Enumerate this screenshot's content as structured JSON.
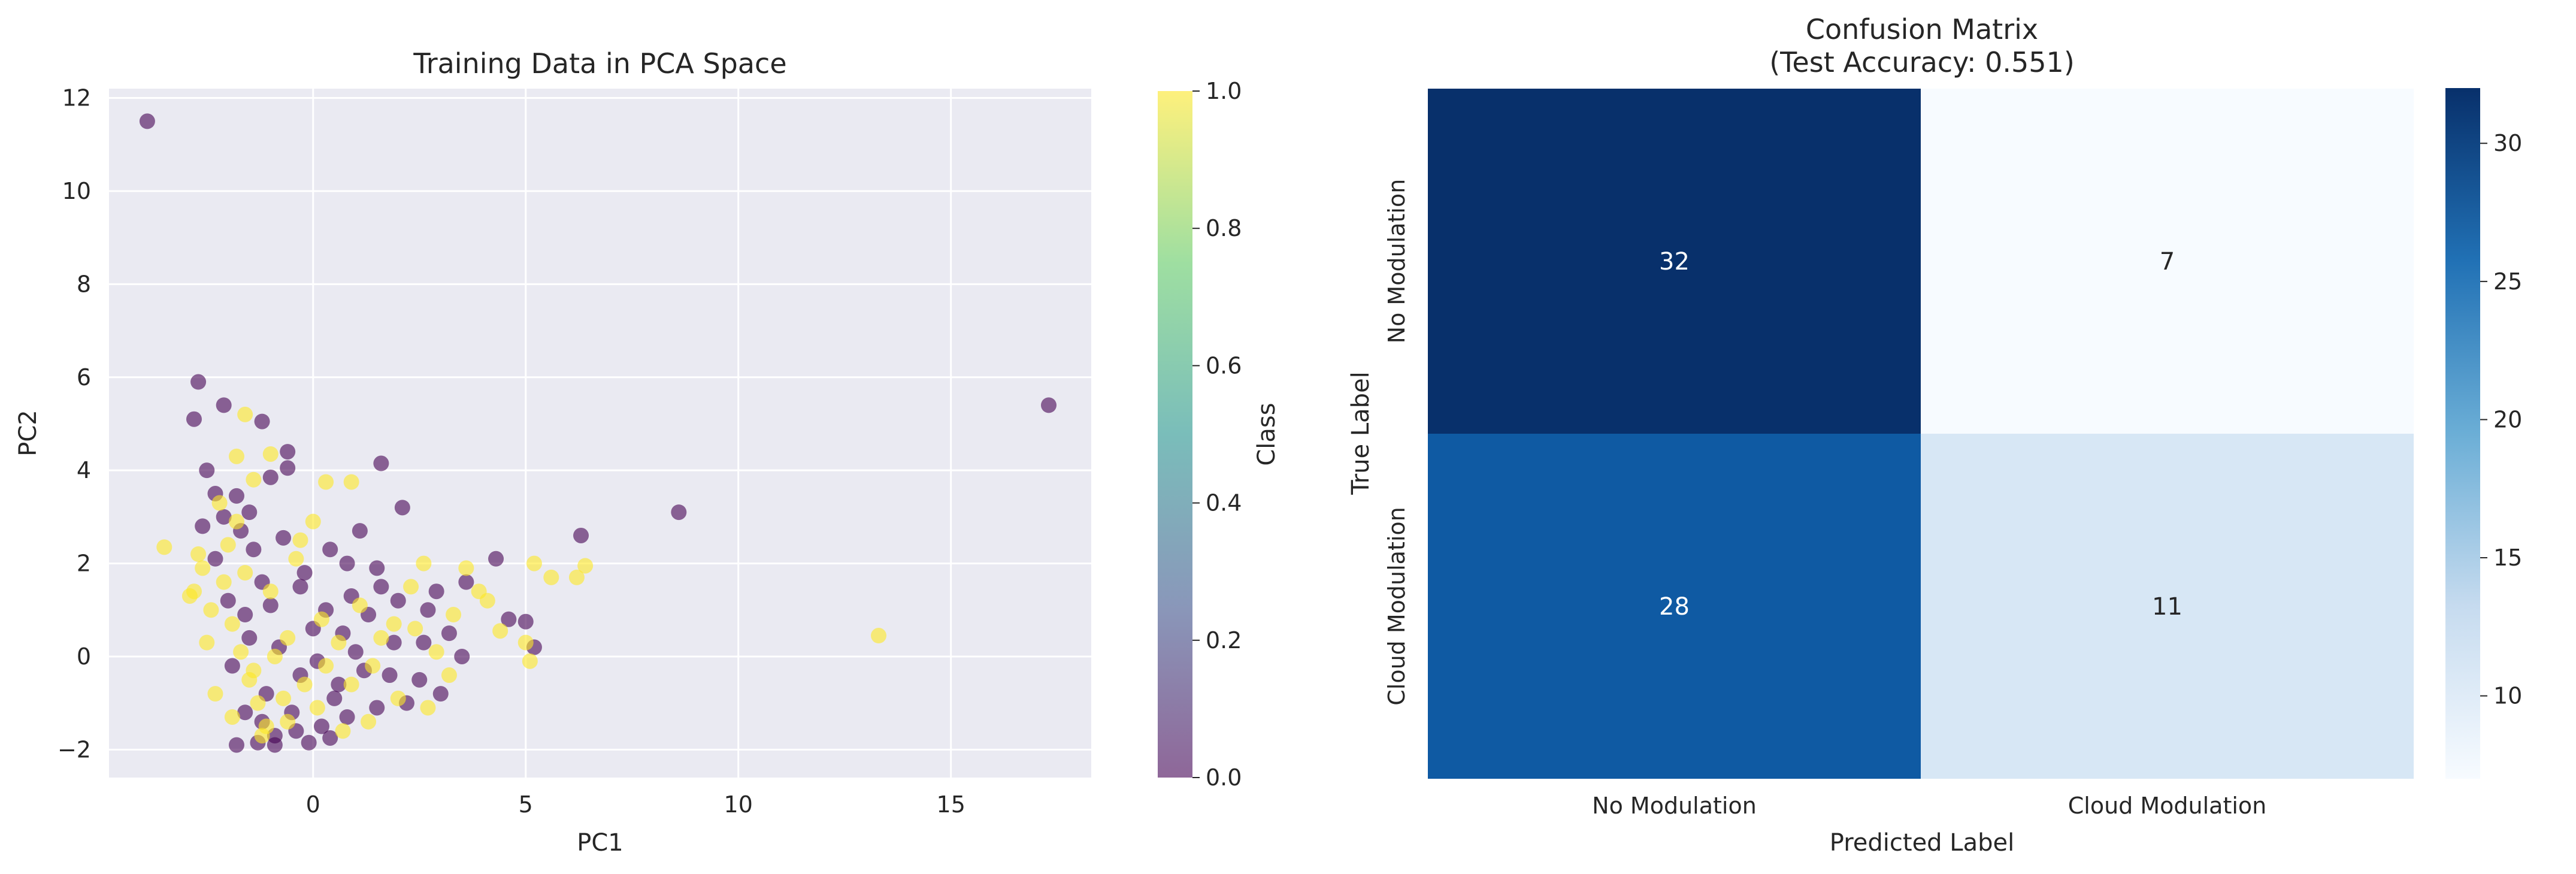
{
  "chart_data": [
    {
      "type": "scatter",
      "title": "Training Data in PCA Space",
      "xlabel": "PC1",
      "ylabel": "PC2",
      "xlim": [
        -4.8,
        18.3
      ],
      "ylim": [
        -2.6,
        12.2
      ],
      "xticks": [
        0,
        5,
        10,
        15
      ],
      "xtick_labels": [
        "0",
        "5",
        "10",
        "15"
      ],
      "yticks": [
        -2,
        0,
        2,
        4,
        6,
        8,
        10,
        12
      ],
      "ytick_labels": [
        "−2",
        "0",
        "2",
        "4",
        "6",
        "8",
        "10",
        "12"
      ],
      "grid": true,
      "colormap": "viridis",
      "alpha": 0.6,
      "colorbar": {
        "label": "Class",
        "range": [
          0.0,
          1.0
        ],
        "ticks": [
          0.0,
          0.2,
          0.4,
          0.6,
          0.8,
          1.0
        ],
        "tick_labels": [
          "0.0",
          "0.2",
          "0.4",
          "0.6",
          "0.8",
          "1.0"
        ]
      },
      "class_colors": {
        "0": "#440154",
        "1": "#fde725"
      },
      "points": [
        {
          "x": -3.9,
          "y": 11.5,
          "c": 0
        },
        {
          "x": 17.3,
          "y": 5.4,
          "c": 0
        },
        {
          "x": 8.6,
          "y": 3.1,
          "c": 0
        },
        {
          "x": 13.3,
          "y": 0.45,
          "c": 1
        },
        {
          "x": -3.5,
          "y": 2.35,
          "c": 1
        },
        {
          "x": -2.7,
          "y": 5.9,
          "c": 0
        },
        {
          "x": -2.8,
          "y": 5.1,
          "c": 0
        },
        {
          "x": -2.1,
          "y": 5.4,
          "c": 0
        },
        {
          "x": -1.2,
          "y": 5.05,
          "c": 0
        },
        {
          "x": -1.0,
          "y": 3.85,
          "c": 0
        },
        {
          "x": -0.6,
          "y": 4.4,
          "c": 0
        },
        {
          "x": -0.6,
          "y": 4.05,
          "c": 0
        },
        {
          "x": 1.6,
          "y": 4.15,
          "c": 0
        },
        {
          "x": 2.1,
          "y": 3.2,
          "c": 0
        },
        {
          "x": -2.5,
          "y": 4.0,
          "c": 0
        },
        {
          "x": -2.3,
          "y": 3.5,
          "c": 0
        },
        {
          "x": -1.8,
          "y": 3.45,
          "c": 0
        },
        {
          "x": -1.5,
          "y": 3.1,
          "c": 0
        },
        {
          "x": 1.1,
          "y": 2.7,
          "c": 0
        },
        {
          "x": 6.3,
          "y": 2.6,
          "c": 0
        },
        {
          "x": -0.7,
          "y": 2.55,
          "c": 0
        },
        {
          "x": 0.4,
          "y": 2.3,
          "c": 0
        },
        {
          "x": 3.6,
          "y": 1.6,
          "c": 0
        },
        {
          "x": 4.3,
          "y": 2.1,
          "c": 0
        },
        {
          "x": 4.6,
          "y": 0.8,
          "c": 0
        },
        {
          "x": 5.0,
          "y": 0.75,
          "c": 0
        },
        {
          "x": 5.2,
          "y": 0.2,
          "c": 0
        },
        {
          "x": 3.2,
          "y": 0.5,
          "c": 0
        },
        {
          "x": 2.7,
          "y": 1.0,
          "c": 0
        },
        {
          "x": 1.6,
          "y": 1.5,
          "c": 0
        },
        {
          "x": 0.9,
          "y": 1.3,
          "c": 0
        },
        {
          "x": -0.2,
          "y": 1.8,
          "c": 0
        },
        {
          "x": -1.2,
          "y": 1.6,
          "c": 0
        },
        {
          "x": -2.0,
          "y": 1.2,
          "c": 0
        },
        {
          "x": -2.3,
          "y": 2.1,
          "c": 0
        },
        {
          "x": -1.4,
          "y": 2.3,
          "c": 0
        },
        {
          "x": 0.3,
          "y": 1.0,
          "c": 0
        },
        {
          "x": 1.9,
          "y": 0.3,
          "c": 0
        },
        {
          "x": 2.5,
          "y": -0.5,
          "c": 0
        },
        {
          "x": 3.5,
          "y": 0.0,
          "c": 0
        },
        {
          "x": 1.2,
          "y": -0.3,
          "c": 0
        },
        {
          "x": 0.5,
          "y": -0.9,
          "c": 0
        },
        {
          "x": -0.3,
          "y": -0.4,
          "c": 0
        },
        {
          "x": -1.1,
          "y": -0.8,
          "c": 0
        },
        {
          "x": -1.6,
          "y": -1.2,
          "c": 0
        },
        {
          "x": -1.8,
          "y": -1.9,
          "c": 0
        },
        {
          "x": -1.3,
          "y": -1.85,
          "c": 0
        },
        {
          "x": -0.9,
          "y": -1.7,
          "c": 0
        },
        {
          "x": -0.4,
          "y": -1.6,
          "c": 0
        },
        {
          "x": 0.2,
          "y": -1.5,
          "c": 0
        },
        {
          "x": 0.8,
          "y": -1.3,
          "c": 0
        },
        {
          "x": 1.5,
          "y": -1.1,
          "c": 0
        },
        {
          "x": 2.2,
          "y": -1.0,
          "c": 0
        },
        {
          "x": -1.9,
          "y": -0.2,
          "c": 0
        },
        {
          "x": -1.5,
          "y": 0.4,
          "c": 0
        },
        {
          "x": -0.8,
          "y": 0.2,
          "c": 0
        },
        {
          "x": 0.0,
          "y": 0.6,
          "c": 0
        },
        {
          "x": 0.7,
          "y": 0.5,
          "c": 0
        },
        {
          "x": 1.3,
          "y": 0.9,
          "c": 0
        },
        {
          "x": 2.0,
          "y": 1.2,
          "c": 0
        },
        {
          "x": 2.9,
          "y": 1.4,
          "c": 0
        },
        {
          "x": -2.6,
          "y": 2.8,
          "c": 0
        },
        {
          "x": -1.7,
          "y": 2.7,
          "c": 0
        },
        {
          "x": -1.0,
          "y": 1.1,
          "c": 0
        },
        {
          "x": 0.1,
          "y": -0.1,
          "c": 0
        },
        {
          "x": 1.0,
          "y": 0.1,
          "c": 0
        },
        {
          "x": 1.8,
          "y": -0.4,
          "c": 0
        },
        {
          "x": 2.6,
          "y": 0.3,
          "c": 0
        },
        {
          "x": 3.0,
          "y": -0.8,
          "c": 0
        },
        {
          "x": -0.5,
          "y": -1.2,
          "c": 0
        },
        {
          "x": -1.2,
          "y": -1.4,
          "c": 0
        },
        {
          "x": 0.6,
          "y": -0.6,
          "c": 0
        },
        {
          "x": -1.6,
          "y": 0.9,
          "c": 0
        },
        {
          "x": -0.3,
          "y": 1.5,
          "c": 0
        },
        {
          "x": 0.8,
          "y": 2.0,
          "c": 0
        },
        {
          "x": 1.5,
          "y": 1.9,
          "c": 0
        },
        {
          "x": -2.1,
          "y": 3.0,
          "c": 0
        },
        {
          "x": -0.9,
          "y": -1.9,
          "c": 0
        },
        {
          "x": -0.1,
          "y": -1.85,
          "c": 0
        },
        {
          "x": 0.4,
          "y": -1.75,
          "c": 0
        },
        {
          "x": -2.7,
          "y": 2.2,
          "c": 1
        },
        {
          "x": -2.6,
          "y": 1.9,
          "c": 1
        },
        {
          "x": -2.8,
          "y": 1.4,
          "c": 1
        },
        {
          "x": -2.2,
          "y": 3.3,
          "c": 1
        },
        {
          "x": -1.8,
          "y": 4.3,
          "c": 1
        },
        {
          "x": -1.6,
          "y": 5.2,
          "c": 1
        },
        {
          "x": -1.0,
          "y": 4.35,
          "c": 1
        },
        {
          "x": -1.4,
          "y": 3.8,
          "c": 1
        },
        {
          "x": 0.3,
          "y": 3.75,
          "c": 1
        },
        {
          "x": 0.9,
          "y": 3.75,
          "c": 1
        },
        {
          "x": 0.0,
          "y": 2.9,
          "c": 1
        },
        {
          "x": -0.3,
          "y": 2.5,
          "c": 1
        },
        {
          "x": 2.6,
          "y": 2.0,
          "c": 1
        },
        {
          "x": 5.2,
          "y": 2.0,
          "c": 1
        },
        {
          "x": 6.2,
          "y": 1.7,
          "c": 1
        },
        {
          "x": 6.4,
          "y": 1.95,
          "c": 1
        },
        {
          "x": 5.6,
          "y": 1.7,
          "c": 1
        },
        {
          "x": 3.9,
          "y": 1.4,
          "c": 1
        },
        {
          "x": 4.1,
          "y": 1.2,
          "c": 1
        },
        {
          "x": 5.0,
          "y": 0.3,
          "c": 1
        },
        {
          "x": 5.1,
          "y": -0.1,
          "c": 1
        },
        {
          "x": 4.4,
          "y": 0.55,
          "c": 1
        },
        {
          "x": 3.3,
          "y": 0.9,
          "c": 1
        },
        {
          "x": 2.4,
          "y": 0.6,
          "c": 1
        },
        {
          "x": -2.9,
          "y": 1.3,
          "c": 1
        },
        {
          "x": -2.4,
          "y": 1.0,
          "c": 1
        },
        {
          "x": -1.9,
          "y": 0.7,
          "c": 1
        },
        {
          "x": -1.7,
          "y": 0.1,
          "c": 1
        },
        {
          "x": -1.5,
          "y": -0.5,
          "c": 1
        },
        {
          "x": -1.3,
          "y": -1.0,
          "c": 1
        },
        {
          "x": -1.1,
          "y": -1.5,
          "c": 1
        },
        {
          "x": -0.7,
          "y": -0.9,
          "c": 1
        },
        {
          "x": -0.2,
          "y": -0.6,
          "c": 1
        },
        {
          "x": 0.3,
          "y": -0.2,
          "c": 1
        },
        {
          "x": 0.9,
          "y": -0.6,
          "c": 1
        },
        {
          "x": 1.4,
          "y": -0.2,
          "c": 1
        },
        {
          "x": 2.0,
          "y": -0.9,
          "c": 1
        },
        {
          "x": 2.7,
          "y": -1.1,
          "c": 1
        },
        {
          "x": 3.2,
          "y": -0.4,
          "c": 1
        },
        {
          "x": -0.6,
          "y": 0.4,
          "c": 1
        },
        {
          "x": 0.2,
          "y": 0.8,
          "c": 1
        },
        {
          "x": 1.1,
          "y": 1.1,
          "c": 1
        },
        {
          "x": 1.9,
          "y": 0.7,
          "c": 1
        },
        {
          "x": -1.0,
          "y": 1.4,
          "c": 1
        },
        {
          "x": -0.4,
          "y": 2.1,
          "c": 1
        },
        {
          "x": -2.0,
          "y": 2.4,
          "c": 1
        },
        {
          "x": -1.6,
          "y": 1.8,
          "c": 1
        },
        {
          "x": -2.3,
          "y": -0.8,
          "c": 1
        },
        {
          "x": -1.9,
          "y": -1.3,
          "c": 1
        },
        {
          "x": -1.4,
          "y": -0.3,
          "c": 1
        },
        {
          "x": -0.9,
          "y": 0.0,
          "c": 1
        },
        {
          "x": 0.6,
          "y": 0.3,
          "c": 1
        },
        {
          "x": 1.6,
          "y": 0.4,
          "c": 1
        },
        {
          "x": 2.3,
          "y": 1.5,
          "c": 1
        },
        {
          "x": -2.5,
          "y": 0.3,
          "c": 1
        },
        {
          "x": -1.2,
          "y": -1.7,
          "c": 1
        },
        {
          "x": -0.6,
          "y": -1.4,
          "c": 1
        },
        {
          "x": 0.1,
          "y": -1.1,
          "c": 1
        },
        {
          "x": 0.7,
          "y": -1.6,
          "c": 1
        },
        {
          "x": 1.3,
          "y": -1.4,
          "c": 1
        },
        {
          "x": -1.8,
          "y": 2.9,
          "c": 1
        },
        {
          "x": -2.1,
          "y": 1.6,
          "c": 1
        },
        {
          "x": 3.6,
          "y": 1.9,
          "c": 1
        },
        {
          "x": 2.9,
          "y": 0.1,
          "c": 1
        }
      ]
    },
    {
      "type": "heatmap",
      "title": "Confusion Matrix",
      "subtitle": "(Test Accuracy: 0.551)",
      "xlabel": "Predicted Label",
      "ylabel": "True Label",
      "x_categories": [
        "No Modulation",
        "Cloud Modulation"
      ],
      "y_categories": [
        "No Modulation",
        "Cloud Modulation"
      ],
      "values": [
        [
          32,
          7
        ],
        [
          28,
          11
        ]
      ],
      "colormap": "Blues",
      "colorbar": {
        "range": [
          7,
          32
        ],
        "ticks": [
          10,
          15,
          20,
          25,
          30
        ],
        "tick_labels": [
          "10",
          "15",
          "20",
          "25",
          "30"
        ]
      }
    }
  ]
}
